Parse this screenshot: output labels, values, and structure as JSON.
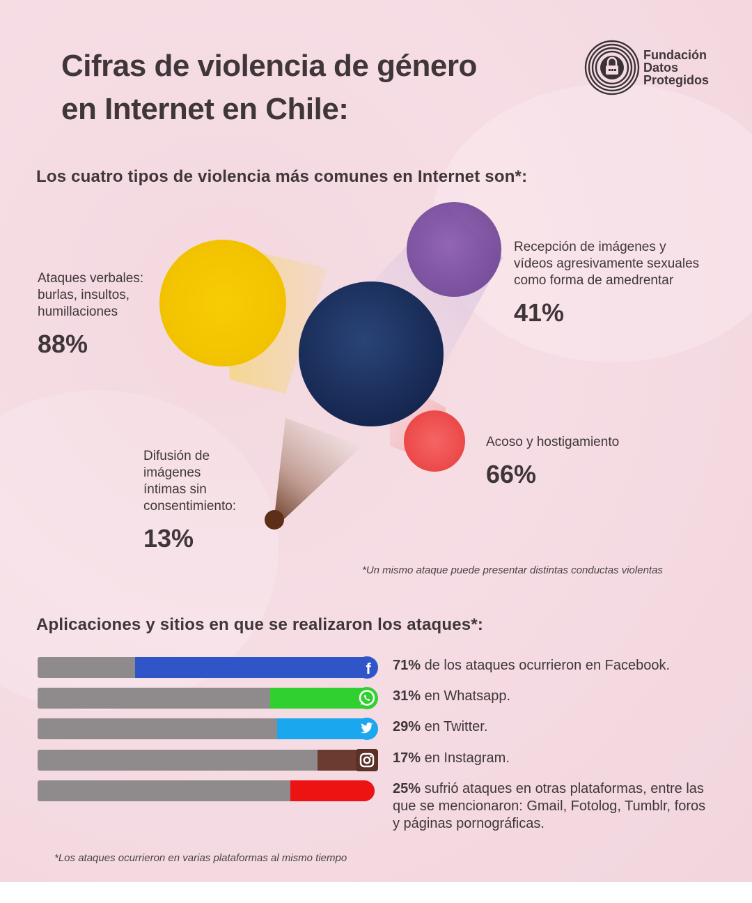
{
  "title": {
    "line1": "Cifras de violencia de género",
    "line2": "en Internet en Chile:"
  },
  "logo": {
    "line1": "Fundación",
    "line2": "Datos",
    "line3": "Protegidos",
    "icon": "fingerprint-lock-icon"
  },
  "section1": {
    "heading": "Los cuatro tipos de violencia más comunes en Internet son*:"
  },
  "section2": {
    "heading": "Aplicaciones y sitios en que se realizaron los ataques*:"
  },
  "categories": {
    "verbal": {
      "lines": [
        "Ataques verbales:",
        "burlas, insultos,",
        "humillaciones"
      ],
      "pct": "88%",
      "color": "#f5c500"
    },
    "images": {
      "lines": [
        "Recepción de imágenes y",
        "vídeos agresivamente sexuales",
        "como forma de amedrentar"
      ],
      "pct": "41%",
      "color": "#7b4fa0"
    },
    "acoso": {
      "lines": [
        "Acoso y hostigamiento"
      ],
      "pct": "66%",
      "color": "#f05454"
    },
    "difusion": {
      "lines": [
        "Difusión de",
        "imágenes",
        "íntimas sin",
        "consentimiento:"
      ],
      "pct": "13%",
      "color": "#6b3a22"
    }
  },
  "center_color": "#1f3566",
  "note1": "*Un mismo ataque puede presentar distintas conductas violentas",
  "note2": "*Los ataques ocurrieron en varias plataformas al mismo tiempo",
  "platforms": [
    {
      "pct": "71%",
      "text": " de los ataques ocurrieron en Facebook.",
      "color": "#2f55c9",
      "icon": "facebook-icon"
    },
    {
      "pct": "31%",
      "text": " en Whatsapp.",
      "color": "#2fd02f",
      "icon": "whatsapp-icon"
    },
    {
      "pct": "29%",
      "text": " en Twitter.",
      "color": "#1aa7ee",
      "icon": "twitter-icon"
    },
    {
      "pct": "17%",
      "text": " en Instagram.",
      "color": "#6b3a30",
      "icon": "instagram-icon"
    },
    {
      "pct": "25%",
      "text": " sufrió ataques en otras plataformas, entre las que se mencionaron: Gmail, Fotolog, Tumblr, foros y páginas pornográficas.",
      "color": "#ee1313",
      "icon": ""
    }
  ],
  "chart_data": [
    {
      "type": "scatter",
      "categories": [
        "Ataques verbales: burlas, insultos, humillaciones",
        "Recepción de imágenes y vídeos agresivamente sexuales como forma de amedrentar",
        "Acoso y hostigamiento",
        "Difusión de imágenes íntimas sin consentimiento"
      ],
      "values": [
        88,
        41,
        66,
        13
      ]
    },
    {
      "type": "bar",
      "categories": [
        "Facebook",
        "Whatsapp",
        "Twitter",
        "Instagram",
        "otras plataformas"
      ],
      "values": [
        71,
        31,
        29,
        17,
        25
      ]
    }
  ]
}
